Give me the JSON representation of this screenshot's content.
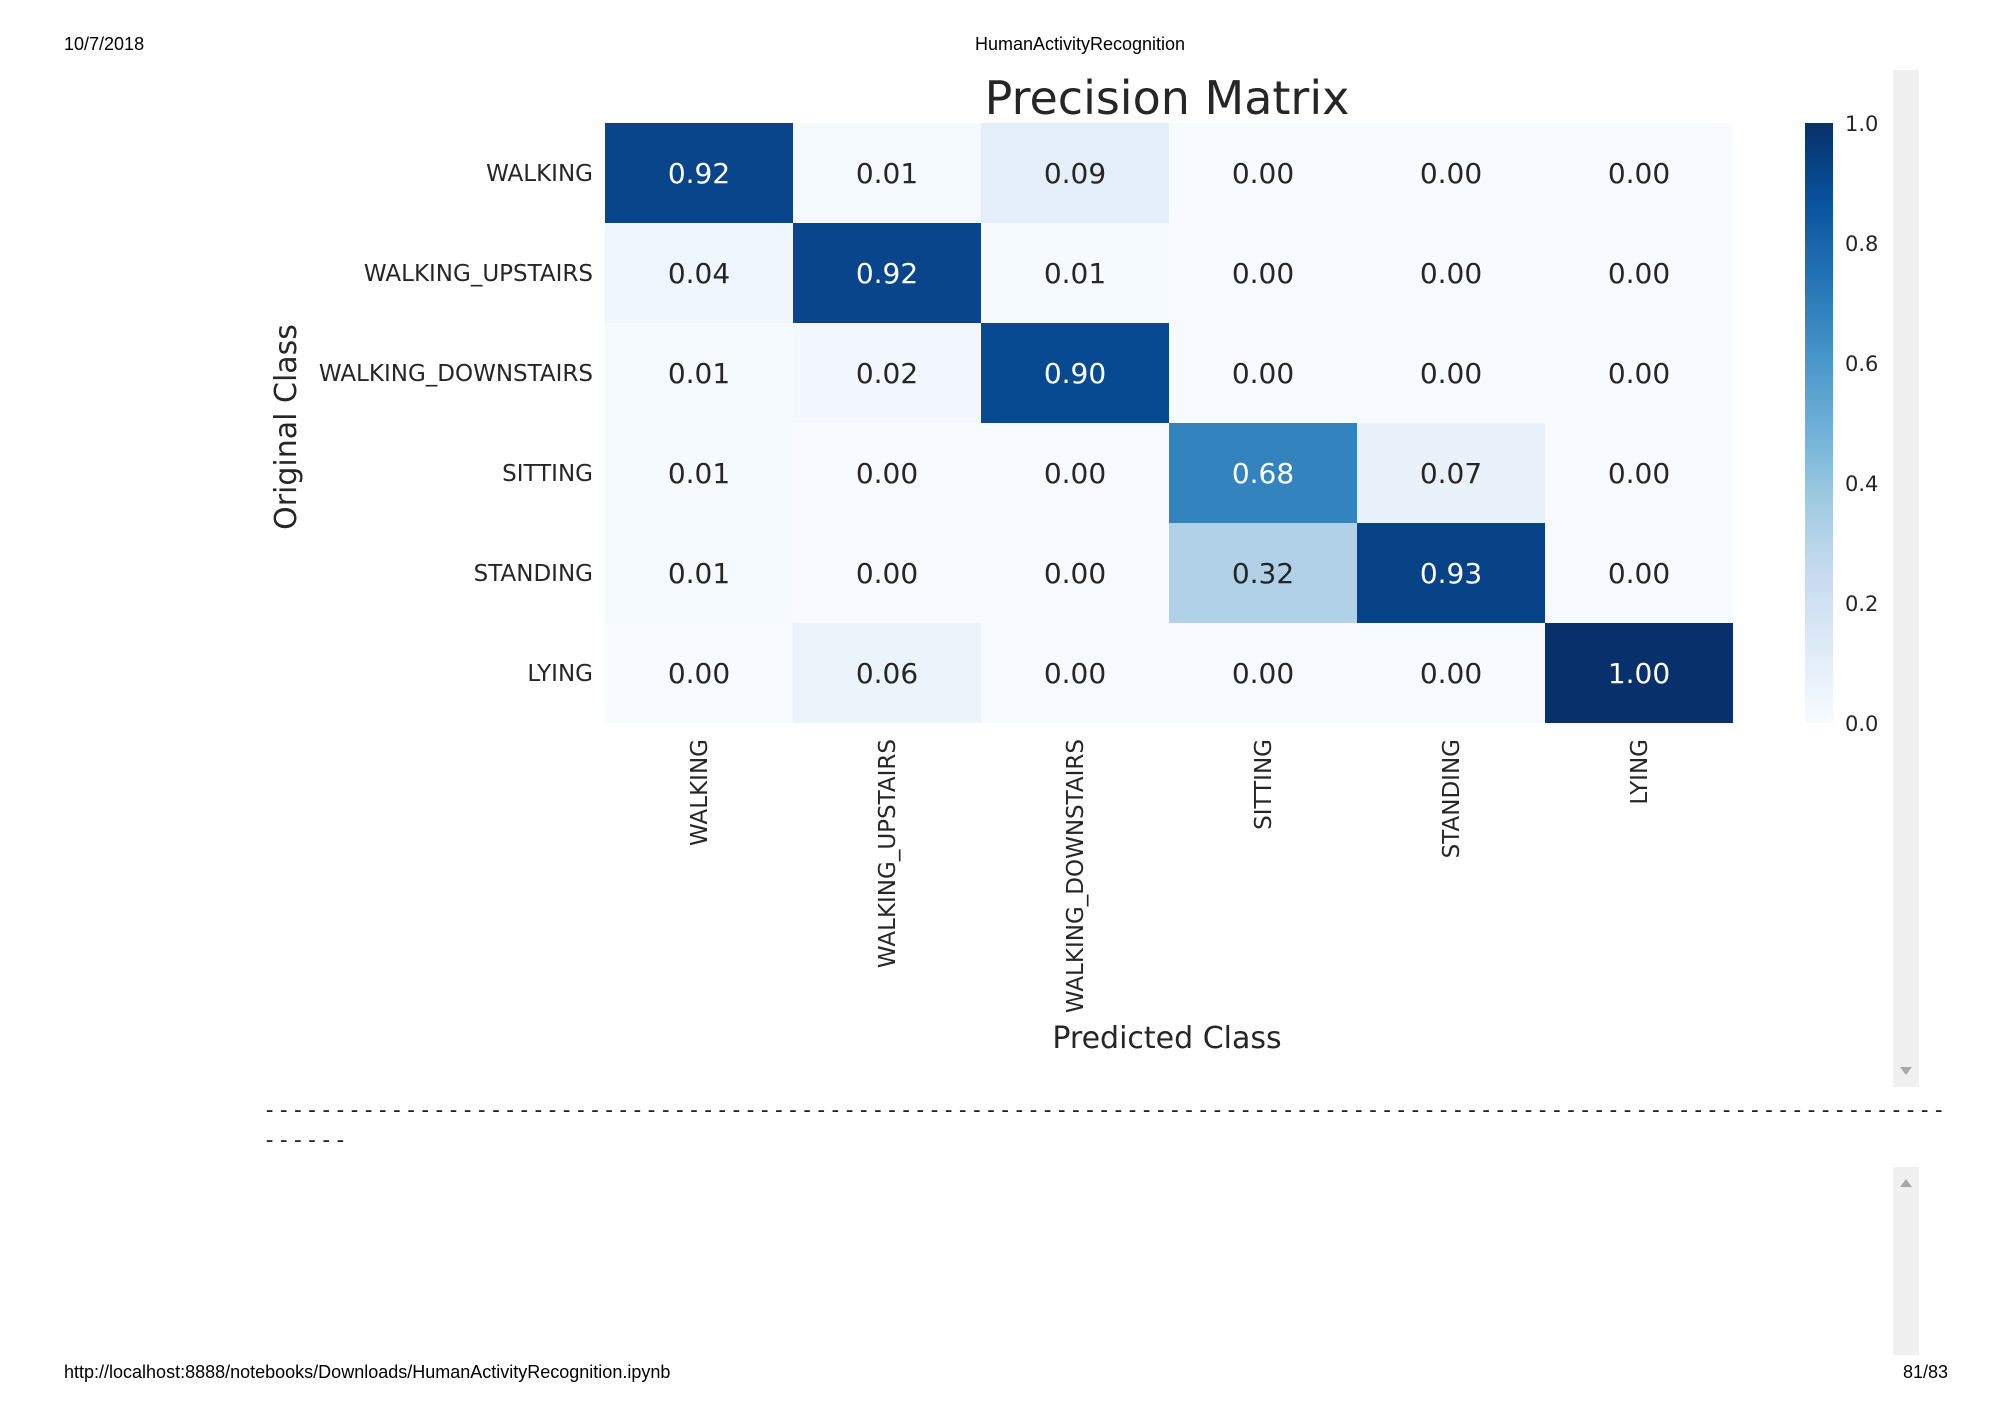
{
  "header": {
    "date": "10/7/2018",
    "title": "HumanActivityRecognition"
  },
  "footer": {
    "url": "http://localhost:8888/notebooks/Downloads/HumanActivityRecognition.ipynb",
    "page": "81/83"
  },
  "separator": {
    "line1": "-----------------------------------------------------------------------------------------------------------------------",
    "line2": "------"
  },
  "chart_data": {
    "type": "heatmap",
    "title": "Precision Matrix",
    "xlabel": "Predicted Class",
    "ylabel": "Original Class",
    "x_categories": [
      "WALKING",
      "WALKING_UPSTAIRS",
      "WALKING_DOWNSTAIRS",
      "SITTING",
      "STANDING",
      "LYING"
    ],
    "y_categories": [
      "WALKING",
      "WALKING_UPSTAIRS",
      "WALKING_DOWNSTAIRS",
      "SITTING",
      "STANDING",
      "LYING"
    ],
    "values": [
      [
        0.92,
        0.01,
        0.09,
        0.0,
        0.0,
        0.0
      ],
      [
        0.04,
        0.92,
        0.01,
        0.0,
        0.0,
        0.0
      ],
      [
        0.01,
        0.02,
        0.9,
        0.0,
        0.0,
        0.0
      ],
      [
        0.01,
        0.0,
        0.0,
        0.68,
        0.07,
        0.0
      ],
      [
        0.01,
        0.0,
        0.0,
        0.32,
        0.93,
        0.0
      ],
      [
        0.0,
        0.06,
        0.0,
        0.0,
        0.0,
        1.0
      ]
    ],
    "value_format": "0.00",
    "colormap": "Blues",
    "colorbar": {
      "range": [
        0.0,
        1.0
      ],
      "ticks": [
        "0.0",
        "0.2",
        "0.4",
        "0.6",
        "0.8",
        "1.0"
      ]
    }
  }
}
